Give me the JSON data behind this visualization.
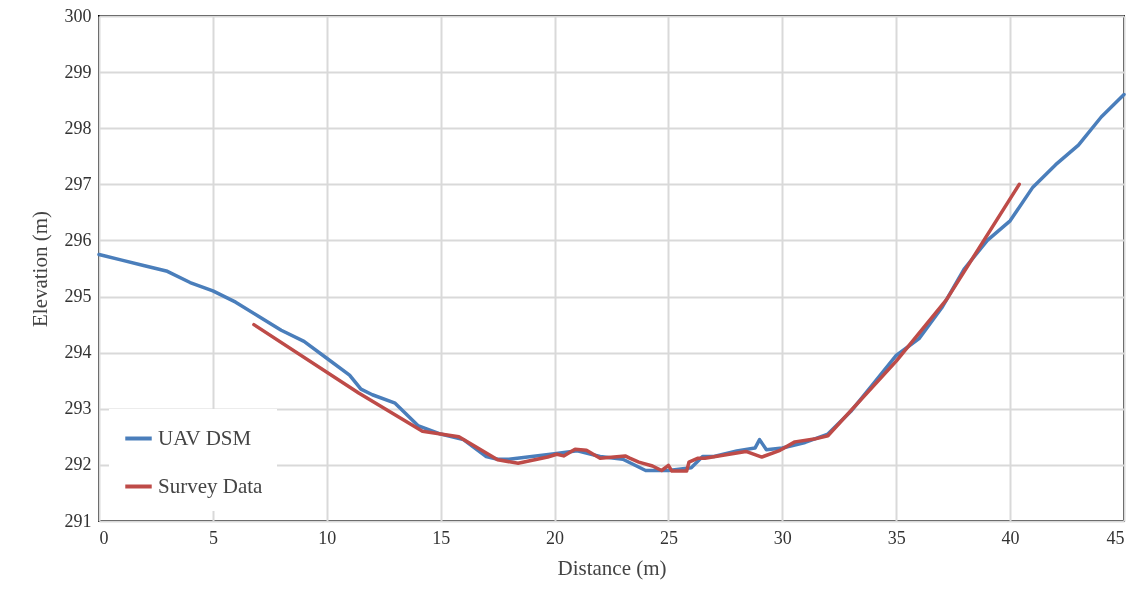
{
  "chart_data": {
    "type": "line",
    "xlabel": "Distance (m)",
    "ylabel": "Elevation (m)",
    "xlim": [
      0,
      45
    ],
    "ylim": [
      291,
      300
    ],
    "xticks": [
      0,
      5,
      10,
      15,
      20,
      25,
      30,
      35,
      40,
      45
    ],
    "yticks": [
      291,
      292,
      293,
      294,
      295,
      296,
      297,
      298,
      299,
      300
    ],
    "grid": true,
    "legend": "bottom left",
    "marker": "none",
    "line_style": "solid",
    "series": [
      {
        "name": "UAV DSM",
        "color": "#4a7ebb",
        "x": [
          0,
          1,
          2,
          3,
          4,
          5,
          6,
          7,
          8,
          9,
          10,
          11,
          11.5,
          12,
          13,
          14,
          15,
          16,
          17,
          17.5,
          18,
          19,
          20,
          21,
          22,
          23,
          24,
          25,
          26,
          26.5,
          27,
          28,
          28.8,
          29,
          29.3,
          30,
          31,
          32,
          33,
          34,
          35,
          36,
          37,
          38,
          39,
          40,
          41,
          42,
          43,
          44,
          45
        ],
        "values": [
          295.75,
          295.65,
          295.55,
          295.45,
          295.25,
          295.1,
          294.9,
          294.65,
          294.4,
          294.2,
          293.9,
          293.6,
          293.35,
          293.25,
          293.1,
          292.7,
          292.55,
          292.45,
          292.15,
          292.1,
          292.1,
          292.15,
          292.2,
          292.25,
          292.15,
          292.1,
          291.9,
          291.9,
          291.95,
          292.15,
          292.15,
          292.25,
          292.3,
          292.45,
          292.27,
          292.3,
          292.4,
          292.55,
          292.95,
          293.45,
          293.95,
          294.25,
          294.8,
          295.5,
          296,
          296.35,
          296.95,
          297.35,
          297.7,
          298.2,
          298.6
        ]
      },
      {
        "name": "Survey Data",
        "color": "#be4b48",
        "x": [
          6.8,
          11.4,
          14.2,
          15.8,
          17.5,
          18.4,
          19.7,
          20.1,
          20.4,
          20.9,
          21.4,
          22,
          23.1,
          23.3,
          23.7,
          24.3,
          24.7,
          25,
          25.15,
          25.8,
          25.9,
          26.3,
          26.6,
          28.4,
          29.1,
          29.9,
          30.55,
          31.4,
          32,
          35,
          37.2,
          40.4
        ],
        "values": [
          294.5,
          293.28,
          292.6,
          292.5,
          292.09,
          292.03,
          292.14,
          292.19,
          292.16,
          292.28,
          292.26,
          292.12,
          292.16,
          292.12,
          292.05,
          291.98,
          291.9,
          291.99,
          291.89,
          291.89,
          292.05,
          292.12,
          292.12,
          292.24,
          292.14,
          292.26,
          292.41,
          292.46,
          292.52,
          293.85,
          294.94,
          297
        ]
      }
    ]
  }
}
